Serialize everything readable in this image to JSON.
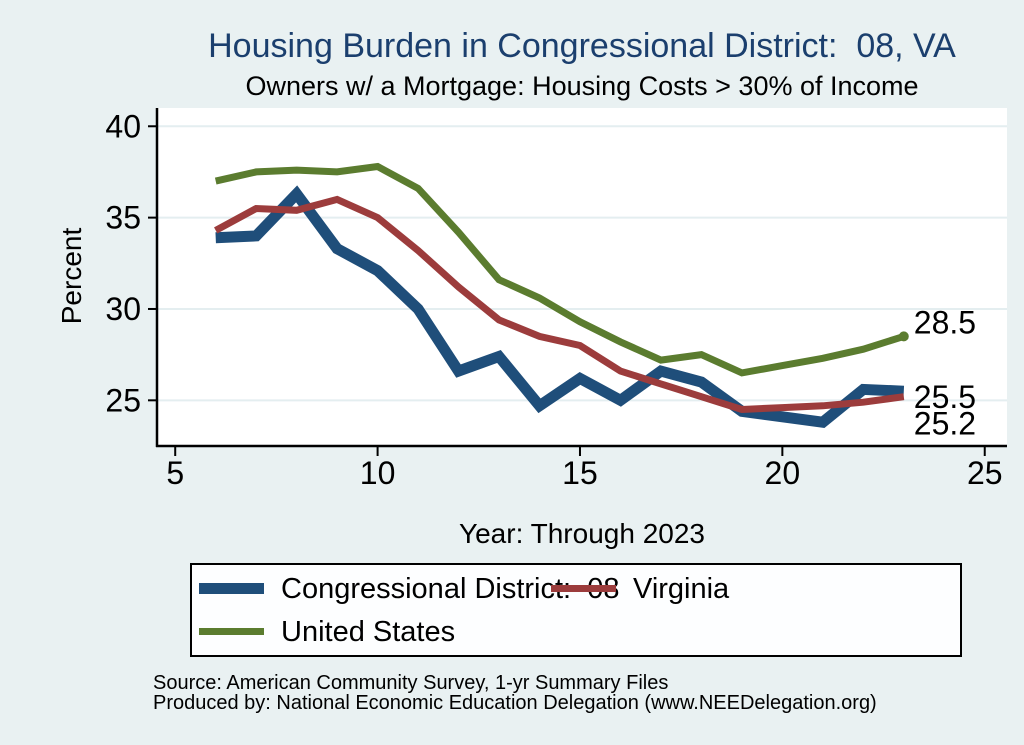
{
  "chart": {
    "title": "Housing Burden in Congressional District:  08, VA",
    "subtitle": "Owners w/ a Mortgage: Housing Costs > 30% of Income",
    "ylabel": "Percent",
    "xlabel": "Year: Through 2023"
  },
  "chart_data": {
    "type": "line",
    "title": "Housing Burden in Congressional District:  08, VA",
    "subtitle": "Owners w/ a Mortgage: Housing Costs > 30% of Income",
    "xlabel": "Year: Through 2023",
    "ylabel": "Percent",
    "x": [
      6,
      7,
      8,
      9,
      10,
      11,
      12,
      13,
      14,
      15,
      16,
      17,
      18,
      19,
      20,
      21,
      22,
      23
    ],
    "series": [
      {
        "id": "cd08",
        "name": "Congressional District:  08",
        "color": "#1f4e7a",
        "width": 11,
        "values": [
          33.9,
          34.0,
          36.3,
          33.3,
          32.1,
          30.0,
          26.6,
          27.4,
          24.7,
          26.2,
          25.0,
          26.6,
          26.0,
          24.4,
          24.1,
          23.8,
          25.6,
          25.5
        ],
        "end_label": "25.5",
        "end_marker": false
      },
      {
        "id": "virginia",
        "name": "Virginia",
        "color": "#9c3c3c",
        "width": 7,
        "values": [
          34.3,
          35.5,
          35.4,
          36.0,
          35.0,
          33.2,
          31.2,
          29.4,
          28.5,
          28.0,
          26.6,
          25.9,
          25.2,
          24.5,
          24.6,
          24.7,
          24.9,
          25.2
        ],
        "end_label": "25.2",
        "end_marker": false
      },
      {
        "id": "us",
        "name": "United States",
        "color": "#5b7c2f",
        "width": 7,
        "values": [
          37.0,
          37.5,
          37.6,
          37.5,
          37.8,
          36.6,
          34.2,
          31.6,
          30.6,
          29.3,
          28.2,
          27.2,
          27.5,
          26.5,
          26.9,
          27.3,
          27.8,
          28.5
        ],
        "end_label": "28.5",
        "end_marker": true
      }
    ],
    "xticks": [
      5,
      10,
      15,
      20,
      25
    ],
    "yticks": [
      25,
      30,
      35,
      40
    ],
    "xlim": [
      4.55,
      25.55
    ],
    "ylim": [
      22.5,
      41
    ],
    "grid": "horizontal",
    "legend_position": "bottom"
  },
  "source": {
    "line1": "Source: American Community Survey, 1-yr Summary Files",
    "line2": "Produced by: National Economic Education Delegation (www.NEEDelegation.org)"
  },
  "colors": {
    "page_bg": "#e9f1f2",
    "plot_bg": "#ffffff",
    "grid": "#e4eef0",
    "axis": "#000000",
    "title": "#1b3f6e",
    "text": "#000000"
  }
}
